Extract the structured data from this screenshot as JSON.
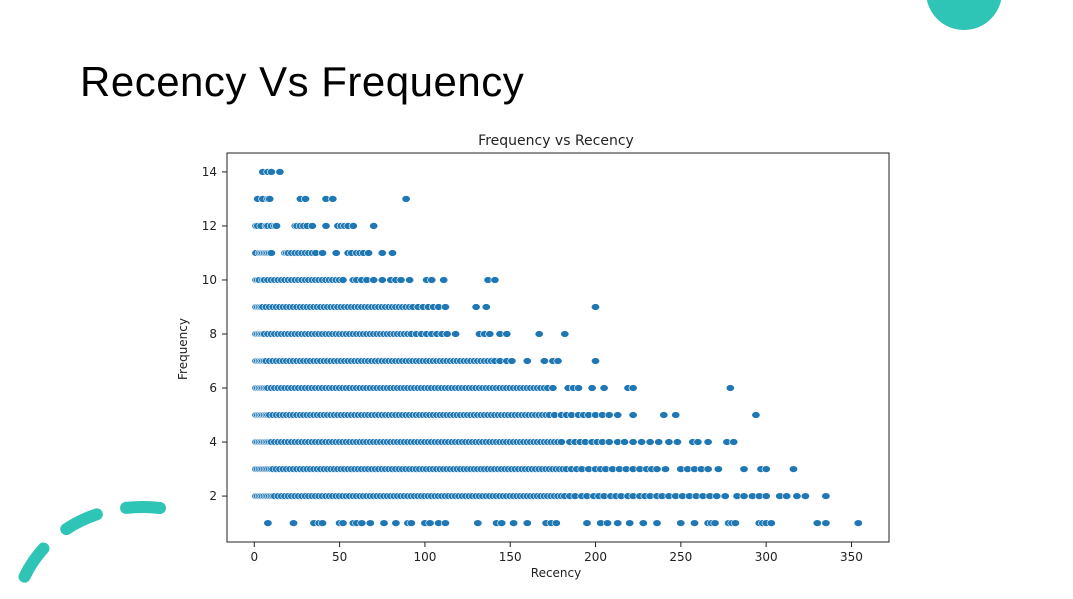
{
  "slide": {
    "title": "Recency Vs Frequency",
    "accent_color": "#2ec4b6"
  },
  "chart_data": {
    "type": "scatter",
    "title": "Frequency vs Recency",
    "xlabel": "Recency",
    "ylabel": "Frequency",
    "xlim": [
      -16,
      372
    ],
    "ylim": [
      0.3,
      14.7
    ],
    "xticks": [
      0,
      50,
      100,
      150,
      200,
      250,
      300,
      350
    ],
    "yticks": [
      2,
      4,
      6,
      8,
      10,
      12,
      14
    ],
    "grid": false,
    "marker_color": "#1f77b4",
    "rows": [
      {
        "y": 14,
        "x": [
          5,
          8,
          10,
          15
        ]
      },
      {
        "y": 13,
        "x": [
          2,
          5,
          8,
          9,
          27,
          30,
          42,
          46,
          89
        ]
      },
      {
        "y": 12,
        "x": [
          1,
          2,
          4,
          7,
          8,
          10,
          12,
          13,
          24,
          25,
          27,
          29,
          31,
          34,
          42,
          49,
          51,
          53,
          55,
          58,
          70
        ]
      },
      {
        "y": 11,
        "x": [
          1,
          3,
          4,
          5,
          6,
          7,
          8,
          9,
          10,
          18,
          19,
          20,
          22,
          24,
          26,
          28,
          30,
          32,
          34,
          36,
          40,
          48,
          55,
          57,
          60,
          62,
          64,
          67,
          75,
          81
        ]
      },
      {
        "y": 10,
        "x": [
          1,
          2,
          3,
          5,
          6,
          8,
          10,
          12,
          14,
          16,
          18,
          20,
          22,
          24,
          26,
          28,
          30,
          32,
          34,
          36,
          38,
          40,
          42,
          44,
          46,
          48,
          50,
          52,
          58,
          60,
          63,
          66,
          70,
          75,
          80,
          83,
          86,
          91,
          101,
          104,
          111,
          137,
          141
        ]
      },
      {
        "y": 9,
        "x": [
          1,
          2,
          3,
          4,
          5,
          7,
          9,
          11,
          13,
          15,
          17,
          19,
          21,
          23,
          25,
          27,
          29,
          31,
          33,
          35,
          37,
          39,
          41,
          43,
          45,
          47,
          49,
          51,
          53,
          55,
          57,
          59,
          61,
          63,
          65,
          67,
          69,
          71,
          73,
          75,
          77,
          79,
          81,
          83,
          85,
          87,
          89,
          91,
          93,
          96,
          99,
          102,
          105,
          108,
          112,
          130,
          136,
          200
        ]
      },
      {
        "y": 8,
        "x": [
          1,
          2,
          3,
          4,
          5,
          6,
          8,
          10,
          12,
          14,
          16,
          18,
          20,
          22,
          24,
          26,
          28,
          30,
          32,
          34,
          36,
          38,
          40,
          42,
          44,
          46,
          48,
          50,
          52,
          54,
          56,
          58,
          60,
          62,
          64,
          66,
          68,
          70,
          72,
          74,
          76,
          78,
          80,
          82,
          84,
          86,
          88,
          90,
          92,
          95,
          98,
          101,
          104,
          107,
          110,
          113,
          118,
          132,
          135,
          138,
          144,
          148,
          167,
          182
        ]
      },
      {
        "y": 7,
        "x": [
          1,
          2,
          3,
          4,
          5,
          6,
          7,
          9,
          11,
          13,
          15,
          17,
          19,
          21,
          23,
          25,
          27,
          29,
          31,
          33,
          35,
          37,
          39,
          41,
          43,
          45,
          47,
          49,
          51,
          53,
          55,
          57,
          59,
          61,
          63,
          65,
          67,
          69,
          71,
          73,
          75,
          77,
          79,
          81,
          83,
          85,
          87,
          89,
          91,
          93,
          95,
          97,
          99,
          101,
          103,
          105,
          107,
          109,
          111,
          113,
          115,
          117,
          119,
          121,
          123,
          125,
          127,
          129,
          131,
          133,
          135,
          137,
          139,
          141,
          144,
          148,
          151,
          160,
          170,
          175,
          178,
          200
        ]
      },
      {
        "y": 6,
        "x": [
          1,
          2,
          3,
          4,
          5,
          6,
          7,
          8,
          10,
          12,
          14,
          16,
          18,
          20,
          22,
          24,
          26,
          28,
          30,
          32,
          34,
          36,
          38,
          40,
          42,
          44,
          46,
          48,
          50,
          52,
          54,
          56,
          58,
          60,
          62,
          64,
          66,
          68,
          70,
          72,
          74,
          76,
          78,
          80,
          82,
          84,
          86,
          88,
          90,
          92,
          94,
          96,
          98,
          100,
          102,
          104,
          106,
          108,
          110,
          112,
          114,
          116,
          118,
          120,
          122,
          124,
          126,
          128,
          130,
          132,
          134,
          136,
          138,
          140,
          142,
          144,
          146,
          148,
          150,
          152,
          154,
          156,
          158,
          160,
          162,
          164,
          166,
          168,
          170,
          172,
          175,
          184,
          187,
          190,
          198,
          205,
          219,
          222,
          279
        ]
      },
      {
        "y": 5,
        "x": [
          1,
          2,
          3,
          4,
          5,
          6,
          7,
          8,
          9,
          11,
          13,
          15,
          17,
          19,
          21,
          23,
          25,
          27,
          29,
          31,
          33,
          35,
          37,
          39,
          41,
          43,
          45,
          47,
          49,
          51,
          53,
          55,
          57,
          59,
          61,
          63,
          65,
          67,
          69,
          71,
          73,
          75,
          77,
          79,
          81,
          83,
          85,
          87,
          89,
          91,
          93,
          95,
          97,
          99,
          101,
          103,
          105,
          107,
          109,
          111,
          113,
          115,
          117,
          119,
          121,
          123,
          125,
          127,
          129,
          131,
          133,
          135,
          137,
          139,
          141,
          143,
          145,
          147,
          149,
          151,
          153,
          155,
          157,
          159,
          161,
          163,
          165,
          167,
          169,
          171,
          173,
          176,
          180,
          183,
          186,
          190,
          193,
          196,
          200,
          204,
          208,
          213,
          222,
          240,
          247,
          294
        ]
      },
      {
        "y": 4,
        "x": [
          1,
          2,
          3,
          4,
          5,
          6,
          7,
          8,
          9,
          10,
          12,
          14,
          16,
          18,
          20,
          22,
          24,
          26,
          28,
          30,
          32,
          34,
          36,
          38,
          40,
          42,
          44,
          46,
          48,
          50,
          52,
          54,
          56,
          58,
          60,
          62,
          64,
          66,
          68,
          70,
          72,
          74,
          76,
          78,
          80,
          82,
          84,
          86,
          88,
          90,
          92,
          94,
          96,
          98,
          100,
          102,
          104,
          106,
          108,
          110,
          112,
          114,
          116,
          118,
          120,
          122,
          124,
          126,
          128,
          130,
          132,
          134,
          136,
          138,
          140,
          142,
          144,
          146,
          148,
          150,
          152,
          154,
          156,
          158,
          160,
          162,
          164,
          166,
          168,
          170,
          172,
          174,
          176,
          178,
          180,
          185,
          188,
          191,
          194,
          198,
          201,
          204,
          208,
          213,
          217,
          222,
          227,
          232,
          237,
          243,
          248,
          257,
          260,
          266,
          277,
          281
        ]
      },
      {
        "y": 3,
        "x": [
          1,
          2,
          3,
          4,
          5,
          6,
          7,
          8,
          9,
          10,
          11,
          13,
          15,
          17,
          19,
          21,
          23,
          25,
          27,
          29,
          31,
          33,
          35,
          37,
          39,
          41,
          43,
          45,
          47,
          49,
          51,
          53,
          55,
          57,
          59,
          61,
          63,
          65,
          67,
          69,
          71,
          73,
          75,
          77,
          79,
          81,
          83,
          85,
          87,
          89,
          91,
          93,
          95,
          97,
          99,
          101,
          103,
          105,
          107,
          109,
          111,
          113,
          115,
          117,
          119,
          121,
          123,
          125,
          127,
          129,
          131,
          133,
          135,
          137,
          139,
          141,
          143,
          145,
          147,
          149,
          151,
          153,
          155,
          157,
          159,
          161,
          163,
          165,
          167,
          169,
          171,
          173,
          175,
          177,
          179,
          181,
          183,
          186,
          189,
          192,
          196,
          200,
          203,
          206,
          210,
          214,
          218,
          222,
          226,
          230,
          233,
          236,
          241,
          250,
          254,
          258,
          262,
          266,
          272,
          287,
          297,
          300,
          316
        ]
      },
      {
        "y": 2,
        "x": [
          1,
          2,
          3,
          4,
          5,
          6,
          7,
          8,
          9,
          10,
          11,
          12,
          14,
          16,
          18,
          20,
          22,
          24,
          26,
          28,
          30,
          32,
          34,
          36,
          38,
          40,
          42,
          44,
          46,
          48,
          50,
          52,
          54,
          56,
          58,
          60,
          62,
          64,
          66,
          68,
          70,
          72,
          74,
          76,
          78,
          80,
          82,
          84,
          86,
          88,
          90,
          92,
          94,
          96,
          98,
          100,
          102,
          104,
          106,
          108,
          110,
          112,
          114,
          116,
          118,
          120,
          122,
          124,
          126,
          128,
          130,
          132,
          134,
          136,
          138,
          140,
          142,
          144,
          146,
          148,
          150,
          152,
          154,
          156,
          158,
          160,
          162,
          164,
          166,
          168,
          170,
          172,
          174,
          176,
          178,
          180,
          182,
          185,
          188,
          192,
          195,
          199,
          202,
          205,
          209,
          212,
          215,
          219,
          222,
          226,
          229,
          232,
          236,
          239,
          243,
          247,
          251,
          255,
          259,
          263,
          267,
          271,
          276,
          283,
          287,
          292,
          296,
          300,
          308,
          312,
          318,
          323,
          335
        ]
      },
      {
        "y": 1,
        "x": [
          8,
          23,
          35,
          38,
          40,
          50,
          52,
          58,
          60,
          63,
          68,
          76,
          83,
          90,
          92,
          100,
          103,
          108,
          112,
          131,
          142,
          145,
          152,
          160,
          171,
          174,
          177,
          195,
          203,
          207,
          213,
          220,
          228,
          236,
          250,
          258,
          266,
          268,
          270,
          278,
          280,
          282,
          296,
          298,
          300,
          303,
          330,
          335,
          354
        ]
      }
    ]
  }
}
